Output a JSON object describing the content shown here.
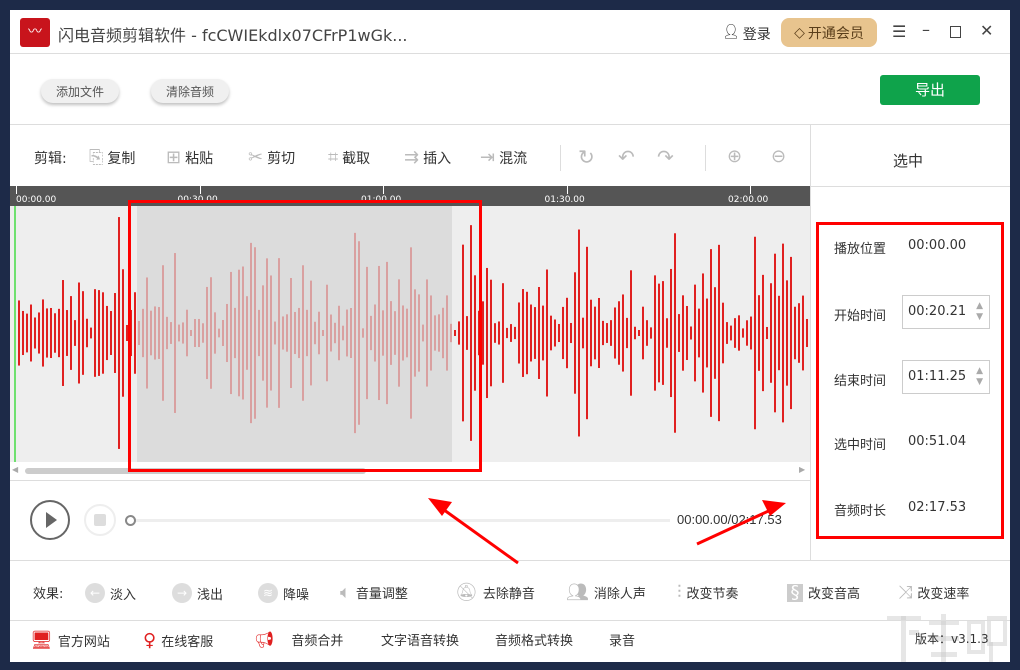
{
  "app": {
    "title": "闪电音频剪辑软件 - fcCWIEkdlx07CFrP1wGk...",
    "login": "登录",
    "vip": "开通会员"
  },
  "actions": {
    "add_file": "添加文件",
    "clear_audio": "清除音频",
    "export": "导出"
  },
  "edit_toolbar": {
    "label": "剪辑:",
    "items": [
      {
        "label": "复制",
        "icon": "copy-icon"
      },
      {
        "label": "粘贴",
        "icon": "paste-icon"
      },
      {
        "label": "剪切",
        "icon": "scissors-icon"
      },
      {
        "label": "截取",
        "icon": "crop-icon"
      },
      {
        "label": "插入",
        "icon": "insert-icon"
      },
      {
        "label": "混流",
        "icon": "mix-icon"
      }
    ]
  },
  "timeline": {
    "ticks": [
      "00:00.00",
      "00:30.00",
      "01:00.00",
      "01:30.00",
      "02:00.00"
    ]
  },
  "playback": {
    "time": "00:00.00/02:17.53",
    "progress": 0
  },
  "panel": {
    "title": "选中",
    "play_pos_label": "播放位置",
    "play_pos": "00:00.00",
    "start_label": "开始时间",
    "start": "00:20.21",
    "end_label": "结束时间",
    "end": "01:11.25",
    "sel_label": "选中时间",
    "sel": "00:51.04",
    "dur_label": "音频时长",
    "dur": "02:17.53"
  },
  "effects": {
    "label": "效果:",
    "items": [
      "淡入",
      "浅出",
      "降噪",
      "音量调整",
      "去除静音",
      "消除人声",
      "改变节奏",
      "改变音高",
      "改变速率"
    ]
  },
  "footer": {
    "items": [
      "官方网站",
      "在线客服",
      "音频合并",
      "文字语音转换",
      "音频格式转换",
      "录音"
    ],
    "version": "版本：v3.1.3"
  },
  "watermark": "下载吧 www.xiazaiba.com",
  "colors": {
    "accent_green": "#0fa34b",
    "wave_red": "#e02020",
    "annotation_red": "#ff0000",
    "vip_gold": "#e8c48e"
  }
}
